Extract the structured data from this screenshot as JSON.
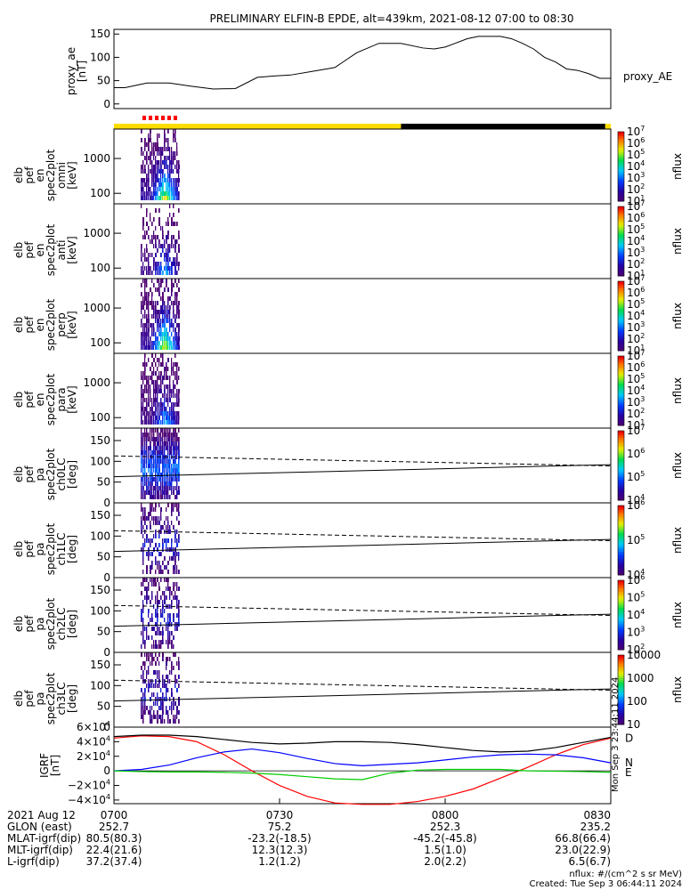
{
  "title": "PRELIMINARY ELFIN-B EPDE, alt=439km, 2021-08-12 07:00 to 08:30",
  "footer": {
    "units": "nflux: #/(cm^2 s sr MeV)",
    "created": "Created: Tue Sep  3 06:44:11 2024",
    "side_stamp": "Mon Sep  3 23:44:11 2024"
  },
  "colors": {
    "state_bar_sunlit": "#ffdd00",
    "state_bar_eclipse": "#000000",
    "science_zone_marks": "#ff0000",
    "grf_d": "#ff0000",
    "grf_n": "#0000ff",
    "grf_e": "#00cc00",
    "grf_total": "#000000"
  },
  "chart_data": [
    {
      "type": "line",
      "ylabel": "proxy_ae\n[nT]",
      "yticks": [
        "0",
        "50",
        "100",
        "150"
      ],
      "ylim": [
        -10,
        160
      ],
      "legend": "proxy_AE",
      "x_minutes": [
        0,
        2,
        4,
        6,
        8,
        10,
        14,
        18,
        22,
        26,
        29,
        32,
        36,
        40,
        44,
        48,
        50,
        52,
        56,
        58,
        60,
        64,
        66,
        68,
        70,
        72,
        74,
        76,
        78,
        80,
        82,
        84,
        86,
        88,
        90
      ],
      "values": [
        35,
        35,
        40,
        45,
        45,
        45,
        38,
        32,
        33,
        57,
        60,
        62,
        70,
        78,
        110,
        130,
        130,
        130,
        120,
        118,
        122,
        140,
        145,
        145,
        145,
        140,
        130,
        118,
        100,
        90,
        75,
        72,
        65,
        55,
        55
      ]
    },
    {
      "type": "heatmap",
      "panel": "omni",
      "ylabel": "elb\npef\nen\nspec2plot\nomni\n[keV]",
      "yticks": [
        "100",
        "1000"
      ],
      "zticks": [
        "10^1",
        "10^2",
        "10^3",
        "10^4",
        "10^5",
        "10^6",
        "10^7"
      ],
      "zlabel": "nflux",
      "active_interval": [
        "0710",
        "0716"
      ]
    },
    {
      "type": "heatmap",
      "panel": "anti",
      "ylabel": "elb\npef\nen\nspec2plot\nanti\n[keV]",
      "yticks": [
        "100",
        "1000"
      ],
      "zticks": [
        "10^1",
        "10^2",
        "10^3",
        "10^4",
        "10^5",
        "10^6",
        "10^7"
      ],
      "zlabel": "nflux",
      "active_interval": [
        "0710",
        "0716"
      ]
    },
    {
      "type": "heatmap",
      "panel": "perp",
      "ylabel": "elb\npef\nen\nspec2plot\nperp\n[keV]",
      "yticks": [
        "100",
        "1000"
      ],
      "zticks": [
        "10^1",
        "10^2",
        "10^3",
        "10^4",
        "10^5",
        "10^6",
        "10^7"
      ],
      "zlabel": "nflux",
      "active_interval": [
        "0710",
        "0716"
      ]
    },
    {
      "type": "heatmap",
      "panel": "para",
      "ylabel": "elb\npef\nen\nspec2plot\npara\n[keV]",
      "yticks": [
        "100",
        "1000"
      ],
      "zticks": [
        "10^1",
        "10^2",
        "10^3",
        "10^4",
        "10^5",
        "10^6",
        "10^7"
      ],
      "zlabel": "nflux",
      "active_interval": [
        "0710",
        "0716"
      ]
    },
    {
      "type": "heatmap",
      "panel": "ch0LC",
      "ylabel": "elb\npef\npa\nspec2plot\nch0LC\n[deg]",
      "yticks": [
        "0",
        "50",
        "100",
        "150"
      ],
      "ylim": [
        0,
        180
      ],
      "zticks": [
        "10^4",
        "10^5",
        "10^6",
        "10^7"
      ],
      "zlabel": "nflux",
      "loss_cone_start": [
        63,
        113
      ],
      "loss_cone_end": [
        92,
        89
      ]
    },
    {
      "type": "heatmap",
      "panel": "ch1LC",
      "ylabel": "elb\npef\npa\nspec2plot\nch1LC\n[deg]",
      "yticks": [
        "0",
        "50",
        "100",
        "150"
      ],
      "ylim": [
        0,
        180
      ],
      "zticks": [
        "10^4",
        "10^5",
        "10^6"
      ],
      "zlabel": "nflux",
      "loss_cone_start": [
        63,
        113
      ],
      "loss_cone_end": [
        92,
        89
      ]
    },
    {
      "type": "heatmap",
      "panel": "ch2LC",
      "ylabel": "elb\npef\npa\nspec2plot\nch2LC\n[deg]",
      "yticks": [
        "0",
        "50",
        "100",
        "150"
      ],
      "ylim": [
        0,
        180
      ],
      "zticks": [
        "10^2",
        "10^3",
        "10^4",
        "10^5",
        "10^6"
      ],
      "zlabel": "nflux",
      "loss_cone_start": [
        63,
        113
      ],
      "loss_cone_end": [
        92,
        89
      ]
    },
    {
      "type": "heatmap",
      "panel": "ch3LC",
      "ylabel": "elb\npef\npa\nspec2plot\nch3LC\n[deg]",
      "yticks": [
        "0",
        "50",
        "100",
        "150"
      ],
      "ylim": [
        0,
        180
      ],
      "zticks": [
        "10",
        "100",
        "1000",
        "10000"
      ],
      "zlabel": "nflux",
      "loss_cone_start": [
        63,
        113
      ],
      "loss_cone_end": [
        92,
        89
      ]
    },
    {
      "type": "line",
      "ylabel": "IGRF\n[nT]",
      "yticks": [
        "−4×10^4",
        "−2×10^4",
        "0",
        "2×10^4",
        "4×10^4",
        "6×10^4"
      ],
      "ylim": [
        -45000,
        60000
      ],
      "x_minutes": [
        0,
        5,
        10,
        15,
        20,
        25,
        30,
        35,
        40,
        45,
        50,
        55,
        60,
        65,
        70,
        75,
        80,
        85,
        90
      ],
      "series": [
        {
          "name": "D",
          "values": [
            45000,
            48000,
            47000,
            40000,
            22000,
            0,
            -20000,
            -35000,
            -44000,
            -46000,
            -46000,
            -42000,
            -35000,
            -25000,
            -10000,
            5000,
            22000,
            36000,
            45000
          ]
        },
        {
          "name": "N",
          "values": [
            0,
            2000,
            8000,
            18000,
            26000,
            30000,
            25000,
            17000,
            10000,
            7000,
            9000,
            11000,
            15000,
            19000,
            22000,
            23000,
            22000,
            18000,
            11000
          ]
        },
        {
          "name": "E",
          "values": [
            0,
            -1000,
            -1500,
            -1500,
            -2000,
            -3000,
            -5000,
            -8000,
            -11000,
            -12000,
            -3000,
            1000,
            2000,
            2000,
            2000,
            0,
            -500,
            -1000,
            -2000
          ]
        },
        {
          "name": "",
          "values": [
            47000,
            49000,
            49000,
            47000,
            43000,
            39000,
            37000,
            38000,
            40000,
            40000,
            39000,
            36000,
            32000,
            28000,
            26000,
            27000,
            32000,
            39000,
            46000
          ]
        }
      ]
    }
  ],
  "xaxis": {
    "header": {
      "label": "2021 Aug 12",
      "ticks": [
        "0700",
        "0730",
        "0800",
        "0830"
      ]
    },
    "rows": [
      {
        "label": "GLON (east)",
        "values": [
          "252.7",
          "75.2",
          "252.3",
          "235.2"
        ]
      },
      {
        "label": "MLAT-igrf(dip)",
        "values": [
          "80.5(80.3)",
          "-23.2(-18.5)",
          "-45.2(-45.8)",
          "66.8(66.4)"
        ]
      },
      {
        "label": "MLT-igrf(dip)",
        "values": [
          "22.4(21.6)",
          "12.3(12.3)",
          "1.5(1.0)",
          "23.0(22.9)"
        ]
      },
      {
        "label": "L-igrf(dip)",
        "values": [
          "37.2(37.4)",
          "1.2(1.2)",
          "2.0(2.2)",
          "6.5(6.7)"
        ]
      }
    ]
  }
}
